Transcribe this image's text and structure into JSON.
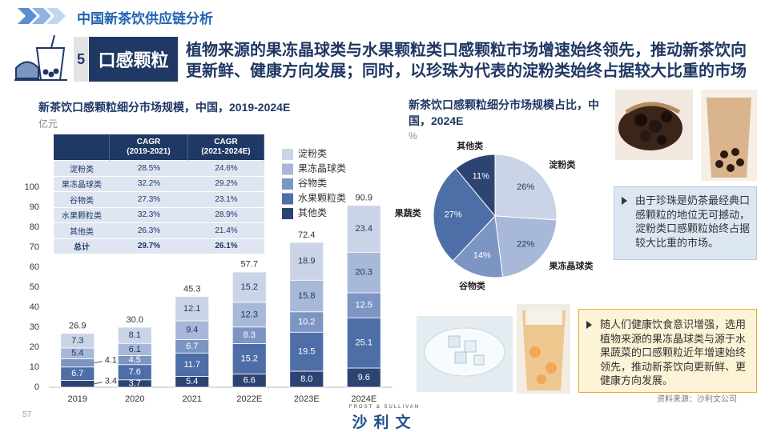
{
  "header": {
    "title": "中国新茶饮供应链分析",
    "section_number": "5",
    "section_title": "口感颗粒",
    "headline": "植物来源的果冻晶球类与水果颗粒类口感颗粒市场增速始终领先，推动新茶饮向更新鲜、健康方向发展；同时，以珍珠为代表的淀粉类始终占据较大比重的市场"
  },
  "cagr_table": {
    "columns": [
      "CAGR\n(2019-2021)",
      "CAGR\n(2021-2024E)"
    ],
    "rows": [
      [
        "淀粉类",
        "28.5%",
        "24.6%"
      ],
      [
        "果冻晶球类",
        "32.2%",
        "29.2%"
      ],
      [
        "谷物类",
        "27.3%",
        "23.1%"
      ],
      [
        "水果颗粒类",
        "32.3%",
        "28.9%"
      ],
      [
        "其他类",
        "26.3%",
        "21.4%"
      ],
      [
        "总计",
        "29.7%",
        "26.1%"
      ]
    ]
  },
  "chart_data": [
    {
      "type": "bar",
      "stacked": true,
      "title": "新茶饮口感颗粒细分市场规模，中国，2019-2024E",
      "y_unit": "亿元",
      "categories": [
        "2019",
        "2020",
        "2021",
        "2022E",
        "2023E",
        "2024E"
      ],
      "series": [
        {
          "name": "其他类",
          "color": "#2d4472",
          "values": [
            3.4,
            3.7,
            5.4,
            6.6,
            8.0,
            9.6
          ],
          "value_labels": [
            "3.4",
            "3.7",
            "5.4",
            "6.6",
            "8.0",
            "9.6"
          ]
        },
        {
          "name": "水果颗粒类",
          "color": "#4e6ea8",
          "values": [
            6.7,
            7.6,
            11.7,
            15.2,
            19.5,
            25.1
          ],
          "value_labels": [
            "6.7",
            "7.6",
            "11.7",
            "15.2",
            "19.5",
            "25.1"
          ]
        },
        {
          "name": "谷物类",
          "color": "#7d95c3",
          "values": [
            4.1,
            4.5,
            6.7,
            8.3,
            10.2,
            12.5
          ],
          "value_labels": [
            "4.1",
            "4.5",
            "6.7",
            "8.3",
            "10.2",
            "12.5"
          ]
        },
        {
          "name": "果冻晶球类",
          "color": "#a8b8d8",
          "values": [
            5.4,
            6.1,
            9.4,
            12.3,
            15.8,
            20.3
          ],
          "value_labels": [
            "5.4",
            "6.1",
            "9.4",
            "12.3",
            "15.8",
            "20.3"
          ]
        },
        {
          "name": "淀粉类",
          "color": "#cbd4e7",
          "values": [
            7.3,
            8.1,
            12.1,
            15.2,
            18.9,
            23.4
          ],
          "value_labels": [
            "7.3",
            "8.1",
            "12.1",
            "15.2",
            "18.9",
            "23.4"
          ]
        }
      ],
      "totals": {
        "values": [
          26.9,
          30.0,
          45.3,
          57.7,
          72.4,
          90.9
        ],
        "value_labels": [
          "26.9",
          "30.0",
          "45.3",
          "57.7",
          "72.4",
          "90.9"
        ]
      },
      "ylim": [
        0,
        100
      ],
      "yticks": [
        0,
        10,
        20,
        30,
        40,
        50,
        60,
        70,
        80,
        90,
        100
      ],
      "grid": false,
      "legend": "upper-right"
    },
    {
      "type": "pie",
      "title": "新茶饮口感颗粒细分市场规模占比，中国，2024E",
      "unit": "%",
      "categories": [
        "淀粉类",
        "果冻晶球类",
        "谷物类",
        "果蔬类",
        "其他类"
      ],
      "values": [
        26,
        22,
        14,
        27,
        11
      ],
      "value_labels": [
        "26%",
        "22%",
        "14%",
        "27%",
        "11%"
      ],
      "colors": [
        "#cbd4e7",
        "#a8b8d8",
        "#7d95c3",
        "#4e6ea8",
        "#2d4472"
      ]
    }
  ],
  "callouts": [
    "由于珍珠是奶茶最经典口感颗粒的地位无可撼动，淀粉类口感颗粒始终占据较大比重的市场。",
    "随人们健康饮食意识增强，选用植物来源的果冻晶球类与源于水果蔬菜的口感颗粒近年增速始终领先，推动新茶饮向更新鲜、更健康方向发展。"
  ],
  "source": "资料来源：沙利文公司",
  "page_number": 57,
  "logo": {
    "brand": "FROST & SULLIVAN",
    "name": "沙利文"
  }
}
